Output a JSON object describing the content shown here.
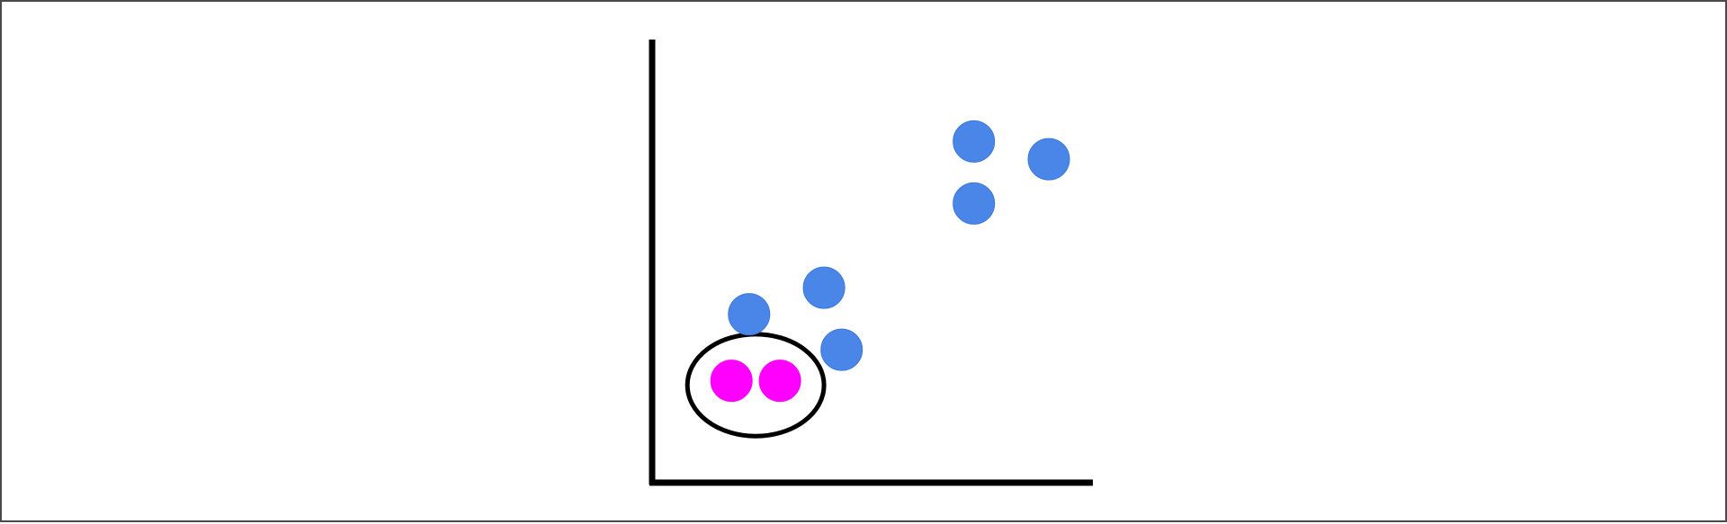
{
  "chart_data": {
    "type": "scatter",
    "title": "",
    "xlabel": "",
    "ylabel": "",
    "xlim": [
      0,
      10
    ],
    "ylim": [
      0,
      10
    ],
    "grid": false,
    "series": [
      {
        "color": "#4a86e8",
        "points": [
          {
            "x": 2.2,
            "y": 3.8
          },
          {
            "x": 3.9,
            "y": 4.4
          },
          {
            "x": 4.3,
            "y": 3.0
          },
          {
            "x": 7.3,
            "y": 7.7
          },
          {
            "x": 9.0,
            "y": 7.3
          },
          {
            "x": 7.3,
            "y": 6.3
          }
        ]
      },
      {
        "color": "#ff00ff",
        "points": [
          {
            "x": 1.8,
            "y": 2.3
          },
          {
            "x": 2.9,
            "y": 2.3
          }
        ]
      }
    ],
    "annotations": [
      {
        "type": "ellipse",
        "label": "",
        "center_x": 2.35,
        "center_y": 2.2,
        "rx": 1.55,
        "ry": 1.15
      }
    ]
  }
}
